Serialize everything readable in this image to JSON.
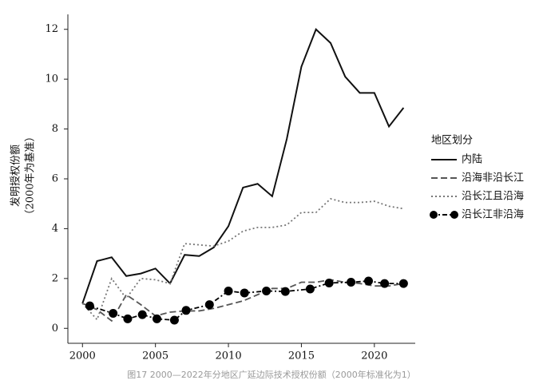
{
  "chart_data": {
    "type": "line",
    "y_label": "发明授权份额",
    "y_label_sub": "（2000年为基准）",
    "caption": "图17 2000—2022年分地区广延边际技术授权份额（2000年标准化为1）",
    "legend_title": "地区划分",
    "x": [
      2000,
      2001,
      2002,
      2003,
      2004,
      2005,
      2006,
      2007,
      2008,
      2009,
      2010,
      2011,
      2012,
      2013,
      2014,
      2015,
      2016,
      2017,
      2018,
      2019,
      2020,
      2021,
      2022
    ],
    "series": [
      {
        "name": "内陆",
        "color": "#111111",
        "style": "solid",
        "values": [
          1.0,
          2.7,
          2.85,
          2.1,
          2.2,
          2.4,
          1.8,
          2.95,
          2.9,
          3.25,
          4.1,
          5.65,
          5.8,
          5.3,
          7.6,
          10.5,
          12.0,
          11.45,
          10.1,
          9.45,
          9.45,
          8.1,
          8.85
        ]
      },
      {
        "name": "沿海非沿长江",
        "color": "#555555",
        "style": "dashed",
        "values": [
          1.0,
          0.75,
          0.3,
          1.35,
          0.95,
          0.5,
          0.65,
          0.7,
          0.7,
          0.8,
          0.95,
          1.1,
          1.35,
          1.6,
          1.6,
          1.85,
          1.85,
          1.95,
          1.85,
          1.8,
          1.7,
          1.7,
          1.8
        ]
      },
      {
        "name": "沿长江且沿海",
        "color": "#777777",
        "style": "dotted",
        "values": [
          1.0,
          0.35,
          2.0,
          1.2,
          2.0,
          1.95,
          1.8,
          3.4,
          3.35,
          3.3,
          3.5,
          3.9,
          4.05,
          4.05,
          4.15,
          4.65,
          4.65,
          5.2,
          5.05,
          5.05,
          5.1,
          4.9,
          4.8
        ]
      },
      {
        "name": "沿长江非沿海",
        "color": "#000000",
        "style": "dot-line",
        "x": [
          2000.5,
          2002.1,
          2003.1,
          2004.1,
          2005.1,
          2006.3,
          2007.1,
          2008.7,
          2010.0,
          2011.1,
          2012.6,
          2013.9,
          2015.6,
          2016.9,
          2018.4,
          2019.6,
          2020.7,
          2022.0
        ],
        "values": [
          0.9,
          0.6,
          0.38,
          0.55,
          0.38,
          0.33,
          0.72,
          0.95,
          1.5,
          1.42,
          1.5,
          1.48,
          1.58,
          1.82,
          1.85,
          1.9,
          1.8,
          1.8
        ]
      }
    ],
    "xlim": [
      1999,
      2022.8
    ],
    "xticks": [
      2000,
      2005,
      2010,
      2015,
      2020
    ],
    "ylim": [
      -0.6,
      12.6
    ],
    "yticks": [
      0,
      2,
      4,
      6,
      8,
      10,
      12
    ],
    "grid": false,
    "legend": "right"
  }
}
